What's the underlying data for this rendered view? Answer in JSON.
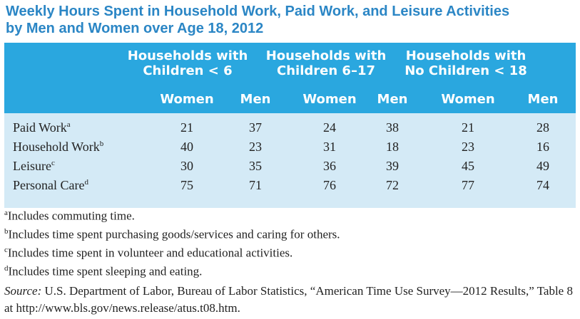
{
  "title": {
    "line1": "Weekly Hours Spent in Household Work, Paid Work, and Leisure Activities",
    "line2": "by Men and Women over Age 18, 2012"
  },
  "table": {
    "groups": [
      {
        "line1": "Households with",
        "line2": "Children < 6"
      },
      {
        "line1": "Households with",
        "line2": "Children 6–17"
      },
      {
        "line1": "Households with",
        "line2": "No Children < 18"
      }
    ],
    "subheaders": [
      "Women",
      "Men",
      "Women",
      "Men",
      "Women",
      "Men"
    ],
    "rows": [
      {
        "label": "Paid Work",
        "mark": "a",
        "values": [
          "21",
          "37",
          "24",
          "38",
          "21",
          "28"
        ]
      },
      {
        "label": "Household Work",
        "mark": "b",
        "values": [
          "40",
          "23",
          "31",
          "18",
          "23",
          "16"
        ]
      },
      {
        "label": "Leisure",
        "mark": "c",
        "values": [
          "30",
          "35",
          "36",
          "39",
          "45",
          "49"
        ]
      },
      {
        "label": "Personal Care",
        "mark": "d",
        "values": [
          "75",
          "71",
          "76",
          "72",
          "77",
          "74"
        ]
      }
    ]
  },
  "notes": [
    {
      "mark": "a",
      "text": "Includes commuting time."
    },
    {
      "mark": "b",
      "text": "Includes time spent purchasing goods/services and caring for others."
    },
    {
      "mark": "c",
      "text": "Includes time spent in volunteer and educational activities."
    },
    {
      "mark": "d",
      "text": "Includes time spent sleeping and eating."
    }
  ],
  "source": {
    "label": "Source:",
    "text": " U.S. Department of Labor, Bureau of Labor Statistics, “American Time Use Survey—2012 Results,” Table 8 at http://www.bls.gov/news.release/atus.t08.htm."
  },
  "colors": {
    "title": "#2b86c5",
    "header_band": "#2aa7df",
    "body_band": "#d4eaf6"
  }
}
